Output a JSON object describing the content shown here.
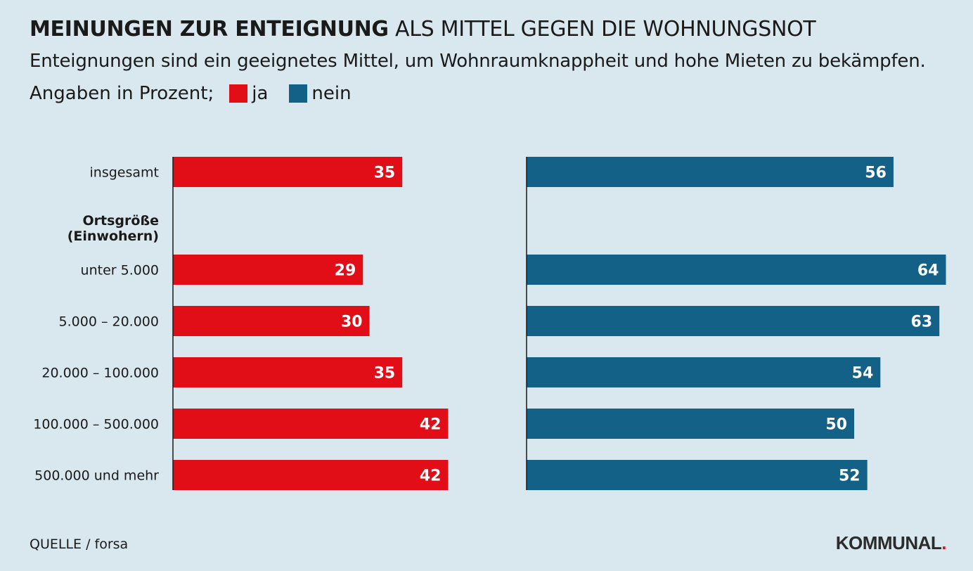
{
  "header": {
    "title_bold": "MEINUNGEN ZUR ENTEIGNUNG",
    "title_rest": "ALS MITTEL GEGEN DIE WOHNUNGSNOT",
    "subtitle": "Enteignungen sind ein geeignetes Mittel, um Wohnraumknappheit und hohe Mieten zu bekämpfen.",
    "legend_prefix": "Angaben in Prozent;"
  },
  "colors": {
    "ja": "#e20e17",
    "nein": "#136187",
    "background": "#d9e7ee"
  },
  "chart_data": {
    "type": "bar",
    "orientation": "horizontal",
    "title": "MEINUNGEN ZUR ENTEIGNUNG ALS MITTEL GEGEN DIE WOHNUNGSNOT",
    "unit": "Prozent",
    "group_label": "Ortsgröße (Einwohern)",
    "group_label_lines": [
      "Ortsgröße",
      "(Einwohern)"
    ],
    "categories": [
      "insgesamt",
      "unter 5.000",
      "5.000 – 20.000",
      "20.000 – 100.000",
      "100.000 – 500.000",
      "500.000 und mehr"
    ],
    "series": [
      {
        "name": "ja",
        "values": [
          35,
          29,
          30,
          35,
          42,
          42
        ]
      },
      {
        "name": "nein",
        "values": [
          56,
          64,
          63,
          54,
          50,
          52
        ]
      }
    ]
  },
  "footer": {
    "source": "QUELLE / forsa",
    "logo_text": "KOMMUNAL",
    "logo_dot": "."
  }
}
